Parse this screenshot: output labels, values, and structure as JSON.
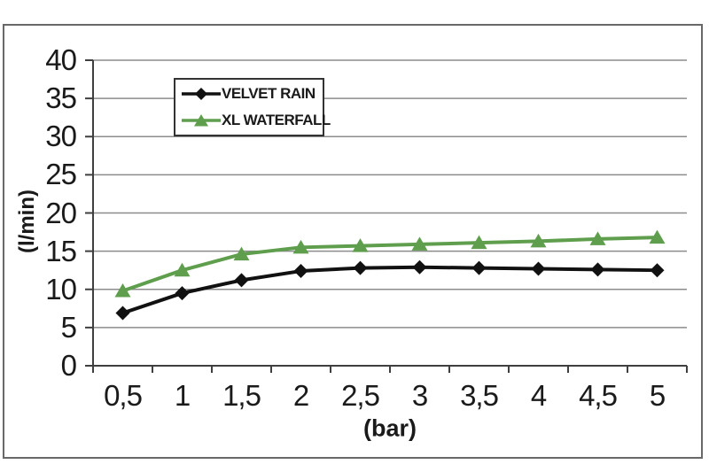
{
  "chart_data": {
    "type": "line",
    "title": "",
    "xlabel": "(bar)",
    "ylabel": "(l/min)",
    "categories": [
      "0,5",
      "1",
      "1,5",
      "2",
      "2,5",
      "3",
      "3,5",
      "4",
      "4,5",
      "5"
    ],
    "ylim": [
      0,
      40
    ],
    "ytick_step": 5,
    "grid": true,
    "legend_position": "inside-top-center",
    "series": [
      {
        "name": "VELVET RAIN",
        "color": "#111111",
        "marker": "diamond",
        "values": [
          6.9,
          9.5,
          11.2,
          12.4,
          12.8,
          12.9,
          12.8,
          12.7,
          12.6,
          12.5
        ]
      },
      {
        "name": "XL WATERFALL",
        "color": "#5f9e4d",
        "marker": "triangle",
        "values": [
          9.8,
          12.5,
          14.6,
          15.5,
          15.7,
          15.9,
          16.1,
          16.3,
          16.6,
          16.8
        ]
      }
    ]
  },
  "colors": {
    "background": "#ffffff",
    "frame_border": "#686868",
    "gridline": "#8c8c8c",
    "axis": "#3f3f3f",
    "text": "#1a1a1a"
  }
}
